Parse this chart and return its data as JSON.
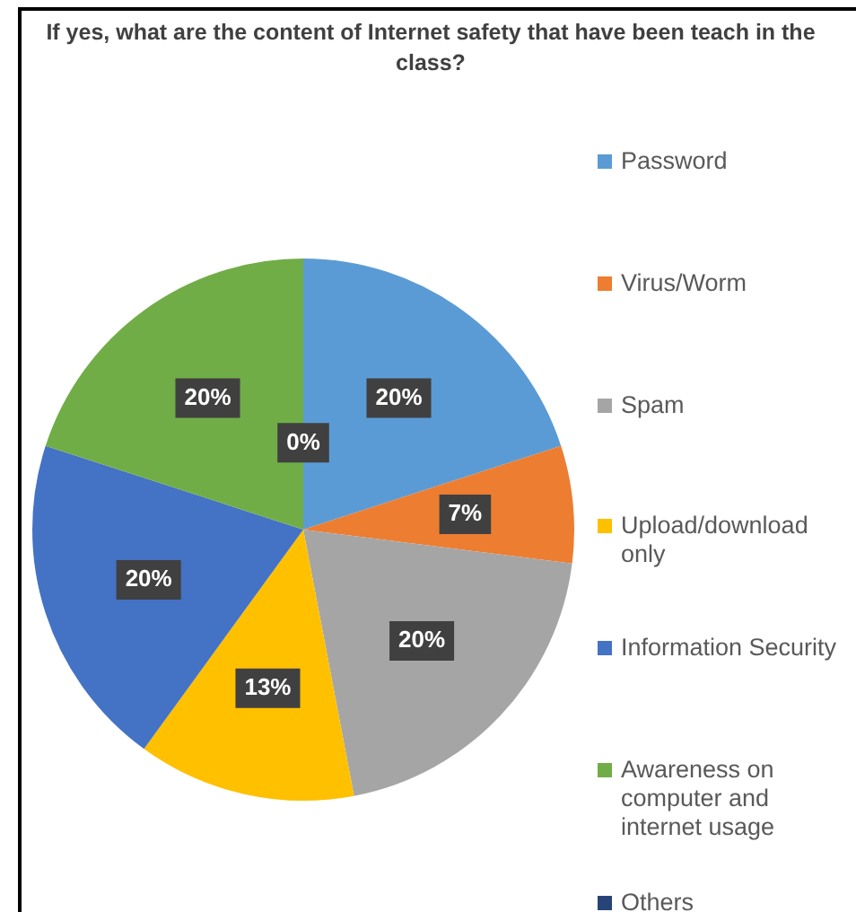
{
  "chart_data": {
    "type": "pie",
    "title": "If yes, what are the content of Internet safety that have been teach in the class?",
    "categories": [
      "Password",
      "Virus/Worm",
      "Spam",
      "Upload/download only",
      "Information Security",
      "Awareness on computer and internet usage",
      "Others"
    ],
    "values": [
      20,
      7,
      20,
      13,
      20,
      20,
      0
    ],
    "value_labels": [
      "20%",
      "7%",
      "20%",
      "13%",
      "20%",
      "20%",
      "0%"
    ],
    "colors": [
      "#5b9bd5",
      "#ed7d31",
      "#a5a5a5",
      "#ffc000",
      "#4472c4",
      "#70ad47",
      "#264478"
    ],
    "legend": "right"
  }
}
